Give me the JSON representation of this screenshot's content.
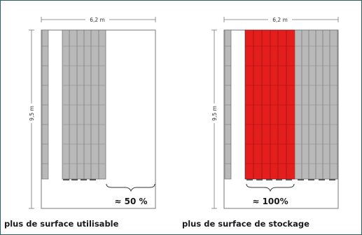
{
  "diagrams": [
    {
      "width_label": "6,2 m",
      "height_label": "9,5 m",
      "gain_label": "≈ 50 %",
      "caption": "plus de surface utilisable",
      "highlight": false
    },
    {
      "width_label": "6,2 m",
      "height_label": "9,5 m",
      "gain_label": "≈ 100%",
      "caption": "plus de surface de stockage",
      "highlight": true
    }
  ],
  "colors": {
    "frame_border": "#2a5f66",
    "shelf_grey": "#b9b9b9",
    "shelf_red": "#e41d1d",
    "outline": "#666666"
  }
}
